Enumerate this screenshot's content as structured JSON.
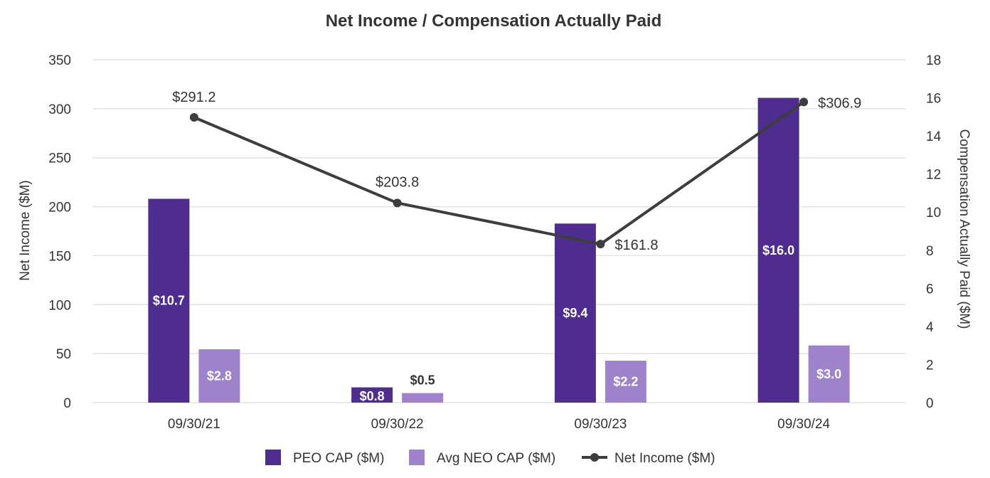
{
  "chart_data": {
    "type": "bar",
    "title": "Net Income / Compensation Actually Paid",
    "categories": [
      "09/30/21",
      "09/30/22",
      "09/30/23",
      "09/30/24"
    ],
    "y_left": {
      "label": "Net Income ($M)",
      "range": [
        0,
        350
      ],
      "ticks": [
        "0",
        "50",
        "100",
        "150",
        "200",
        "250",
        "300",
        "350"
      ]
    },
    "y_right": {
      "label": "Compensation Actually Paid ($M)",
      "range": [
        0,
        18
      ],
      "ticks": [
        "0",
        "2",
        "4",
        "6",
        "8",
        "10",
        "12",
        "14",
        "16",
        "18"
      ]
    },
    "series": [
      {
        "name": "PEO CAP ($M)",
        "kind": "bar",
        "axis": "right",
        "color": "#4f2d8f",
        "values": [
          10.7,
          0.8,
          9.4,
          16.0
        ],
        "labels": [
          "$10.7",
          "$0.8",
          "$9.4",
          "$16.0"
        ]
      },
      {
        "name": "Avg NEO CAP ($M)",
        "kind": "bar",
        "axis": "right",
        "color": "#9e82cc",
        "values": [
          2.8,
          0.5,
          2.2,
          3.0
        ],
        "labels": [
          "$2.8",
          "$0.5",
          "$2.2",
          "$3.0"
        ]
      },
      {
        "name": "Net Income ($M)",
        "kind": "line",
        "axis": "left",
        "color": "#3d3d3d",
        "values": [
          291.2,
          203.8,
          161.8,
          306.9
        ],
        "labels": [
          "$291.2",
          "$203.8",
          "$161.8",
          "$306.9"
        ]
      }
    ],
    "legend": [
      "PEO CAP ($M)",
      "Avg NEO CAP ($M)",
      "Net Income ($M)"
    ],
    "legend_position": "bottom",
    "grid": true
  }
}
